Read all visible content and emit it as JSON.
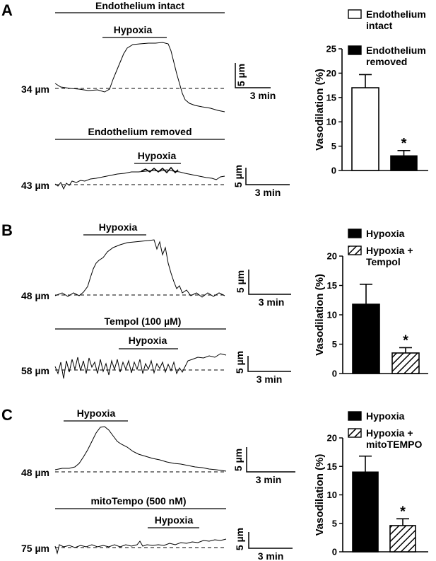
{
  "panels": [
    {
      "letter": "A",
      "traces": [
        {
          "title": "Endothelium intact",
          "stimulus": "Hypoxia",
          "baseline_label": "34 µm",
          "scale_y": "5 µm",
          "scale_x": "3 min"
        },
        {
          "title": "Endothelium removed",
          "stimulus": "Hypoxia",
          "baseline_label": "43 µm",
          "scale_y": "5 µm",
          "scale_x": "3 min"
        }
      ]
    },
    {
      "letter": "B",
      "traces": [
        {
          "title": "",
          "stimulus": "Hypoxia",
          "baseline_label": "48 µm",
          "scale_y": "5 µm",
          "scale_x": "3 min"
        },
        {
          "title": "Tempol (100 µM)",
          "stimulus": "Hypoxia",
          "baseline_label": "58 µm",
          "scale_y": "5 µm",
          "scale_x": "3 min"
        }
      ]
    },
    {
      "letter": "C",
      "traces": [
        {
          "title": "",
          "stimulus": "Hypoxia",
          "baseline_label": "48 µm",
          "scale_y": "5 µm",
          "scale_x": "3 min"
        },
        {
          "title": "mitoTempo (500 nM)",
          "stimulus": "Hypoxia",
          "baseline_label": "75 µm",
          "scale_y": "5 µm",
          "scale_x": "3 min"
        }
      ]
    }
  ],
  "chart_data": [
    {
      "type": "bar",
      "panel": "A",
      "categories": [
        "Endothelium intact",
        "Endothelium removed"
      ],
      "values": [
        17,
        3
      ],
      "errors": [
        2.7,
        1.1
      ],
      "fills": [
        "white",
        "black"
      ],
      "legend": [
        "Endothelium\nintact",
        "Endothelium\nremoved"
      ],
      "ylabel": "Vasodilation (%)",
      "ylim": [
        0,
        25
      ],
      "yticks": [
        0,
        5,
        10,
        15,
        20,
        25
      ],
      "significance": [
        false,
        true
      ],
      "significance_mark": "*"
    },
    {
      "type": "bar",
      "panel": "B",
      "categories": [
        "Hypoxia",
        "Hypoxia + Tempol"
      ],
      "values": [
        11.8,
        3.5
      ],
      "errors": [
        3.4,
        0.9
      ],
      "fills": [
        "black",
        "hatch"
      ],
      "legend": [
        "Hypoxia",
        "Hypoxia +\nTempol"
      ],
      "ylabel": "Vasodilation (%)",
      "ylim": [
        0,
        20
      ],
      "yticks": [
        0,
        5,
        10,
        15,
        20
      ],
      "significance": [
        false,
        true
      ],
      "significance_mark": "*"
    },
    {
      "type": "bar",
      "panel": "C",
      "categories": [
        "Hypoxia",
        "Hypoxia + mitoTEMPO"
      ],
      "values": [
        14,
        4.6
      ],
      "errors": [
        2.8,
        1.2
      ],
      "fills": [
        "black",
        "hatch"
      ],
      "legend": [
        "Hypoxia",
        "Hypoxia +\nmitoTEMPO"
      ],
      "ylabel": "Vasodilation (%)",
      "ylim": [
        0,
        20
      ],
      "yticks": [
        0,
        5,
        10,
        15,
        20
      ],
      "significance": [
        false,
        true
      ],
      "significance_mark": "*"
    }
  ]
}
